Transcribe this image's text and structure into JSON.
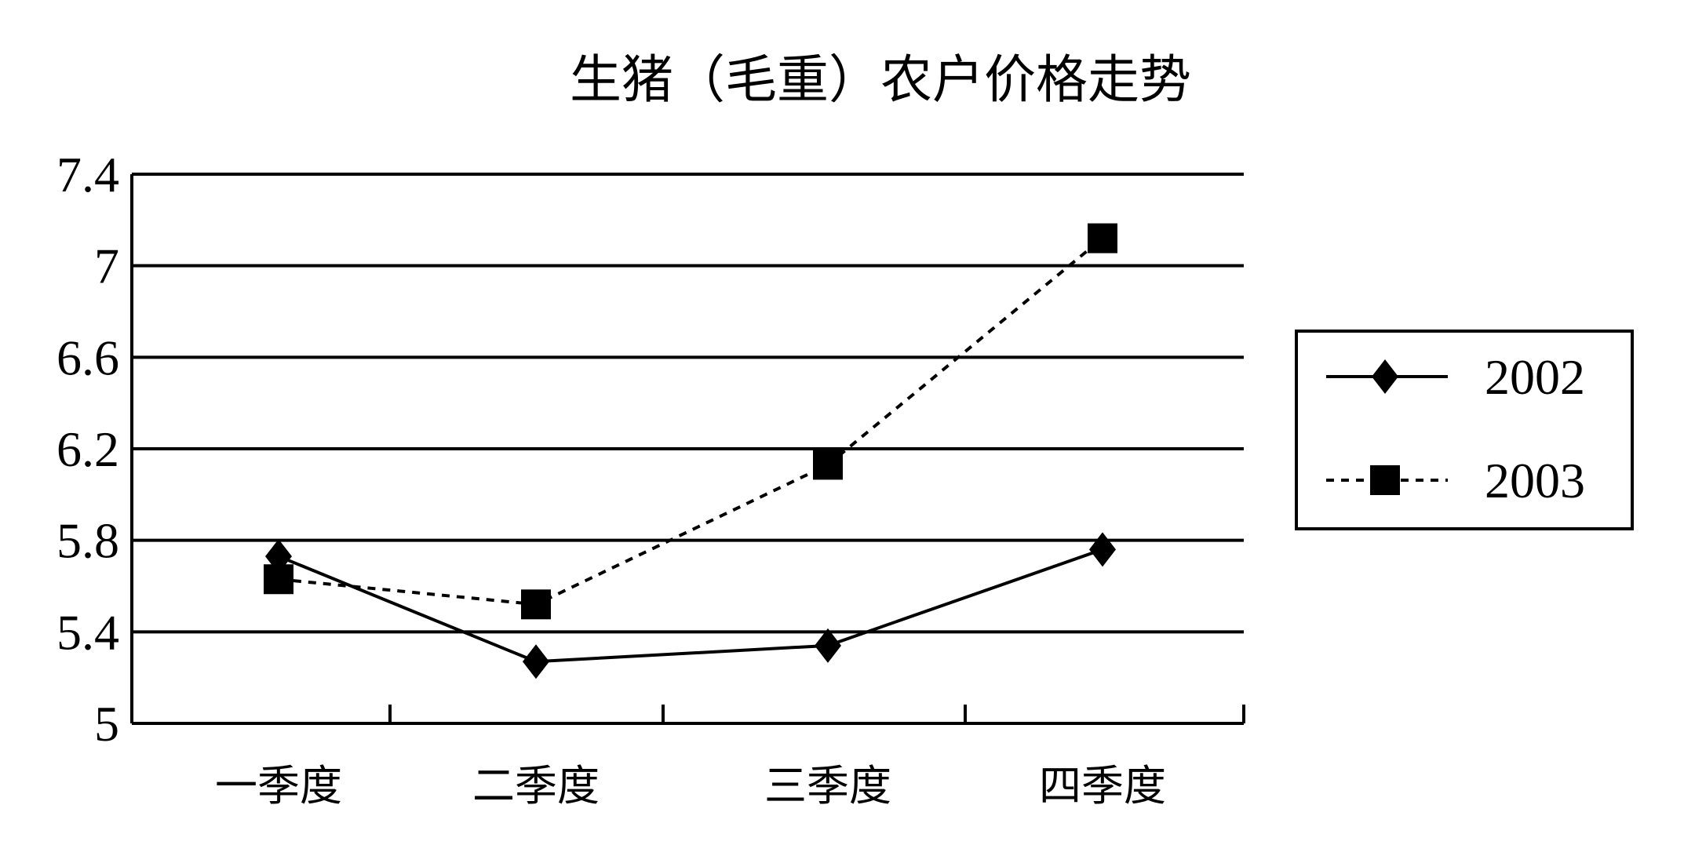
{
  "chart_data": {
    "type": "line",
    "title": "生猪（毛重）农户价格走势",
    "categories": [
      "一季度",
      "二季度",
      "三季度",
      "四季度"
    ],
    "yticks": [
      "5",
      "5.4",
      "5.8",
      "6.2",
      "6.6",
      "7",
      "7.4"
    ],
    "ylim": [
      5,
      7.4
    ],
    "grid": true,
    "legend_position": "right",
    "series": [
      {
        "name": "2002",
        "marker": "diamond",
        "line_style": "solid",
        "values": [
          5.73,
          5.27,
          5.34,
          5.76
        ]
      },
      {
        "name": "2003",
        "marker": "square",
        "line_style": "dashed",
        "values": [
          5.63,
          5.52,
          6.13,
          7.12
        ]
      }
    ],
    "colors": {
      "ink": "#000000",
      "background": "#ffffff"
    }
  }
}
